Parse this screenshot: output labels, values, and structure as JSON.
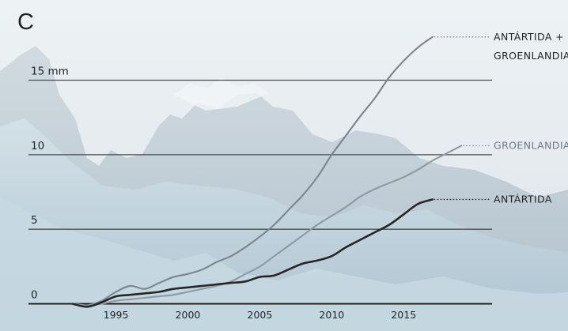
{
  "panel_letter": "C",
  "colors": {
    "sky": "#e6ecef",
    "mountain": "#b6c5cf",
    "ice": "#c4d8e2",
    "grid": "#4a4f52",
    "text": "#1f2326"
  },
  "chart_data": {
    "type": "line",
    "title": "",
    "xlabel": "",
    "ylabel": "",
    "xlim": [
      1992,
      2019
    ],
    "ylim": [
      -0.5,
      19
    ],
    "grid": true,
    "legend": "inline labels at line ends",
    "yticks": [
      {
        "value": 15,
        "label": "15 mm"
      },
      {
        "value": 10,
        "label": "10"
      },
      {
        "value": 5,
        "label": "5"
      },
      {
        "value": 0,
        "label": "0"
      }
    ],
    "xticks": [
      {
        "value": 1995,
        "label": "1995"
      },
      {
        "value": 2000,
        "label": "2000"
      },
      {
        "value": 2005,
        "label": "2005"
      },
      {
        "value": 2010,
        "label": "2010"
      },
      {
        "value": 2015,
        "label": "2015"
      }
    ],
    "series": [
      {
        "name": "ANTÁRTIDA + GROENLANDIA",
        "label_lines": [
          "ANTÁRTIDA +",
          "GROENLANDIA"
        ],
        "color": "#7b858c",
        "x": [
          1992.0,
          1993.0,
          1994.0,
          1995.0,
          1996.0,
          1997.0,
          1998.0,
          1999.0,
          2000.0,
          2001.0,
          2002.0,
          2003.0,
          2004.0,
          2005.0,
          2006.0,
          2007.0,
          2008.0,
          2009.0,
          2010.0,
          2011.0,
          2012.0,
          2013.0,
          2014.0,
          2015.0,
          2016.0,
          2017.0
        ],
        "y": [
          0.0,
          -0.1,
          0.2,
          0.8,
          1.2,
          1.0,
          1.4,
          1.8,
          2.0,
          2.3,
          2.8,
          3.2,
          3.8,
          4.5,
          5.3,
          6.3,
          7.3,
          8.5,
          10.0,
          11.3,
          12.6,
          13.8,
          15.2,
          16.3,
          17.2,
          17.9
        ]
      },
      {
        "name": "GROENLANDIA",
        "label_lines": [
          "GROENLANDIA"
        ],
        "color": "#8e9aa2",
        "x": [
          1992.0,
          1993.0,
          1994.0,
          1995.0,
          1996.0,
          1997.0,
          1998.0,
          1999.0,
          2000.0,
          2001.0,
          2002.0,
          2003.0,
          2004.0,
          2005.0,
          2006.0,
          2007.0,
          2008.0,
          2009.0,
          2010.0,
          2011.0,
          2012.0,
          2013.0,
          2014.0,
          2015.0,
          2016.0,
          2017.0,
          2018.0,
          2019.0
        ],
        "y": [
          0.0,
          -0.1,
          0.0,
          0.2,
          0.3,
          0.4,
          0.5,
          0.6,
          0.8,
          1.0,
          1.2,
          1.5,
          2.0,
          2.5,
          3.2,
          3.9,
          4.6,
          5.3,
          5.9,
          6.5,
          7.2,
          7.7,
          8.1,
          8.5,
          9.0,
          9.6,
          10.1,
          10.6
        ]
      },
      {
        "name": "ANTÁRTIDA",
        "label_lines": [
          "ANTÁRTIDA"
        ],
        "color": "#262626",
        "x": [
          1992.0,
          1993.0,
          1994.0,
          1995.0,
          1996.0,
          1997.0,
          1998.0,
          1999.0,
          2000.0,
          2001.0,
          2002.0,
          2003.0,
          2004.0,
          2005.0,
          2006.0,
          2007.0,
          2008.0,
          2009.0,
          2010.0,
          2011.0,
          2012.0,
          2013.0,
          2014.0,
          2015.0,
          2016.0,
          2017.0
        ],
        "y": [
          0.0,
          -0.2,
          0.1,
          0.5,
          0.6,
          0.7,
          0.8,
          1.0,
          1.1,
          1.2,
          1.3,
          1.4,
          1.5,
          1.8,
          1.9,
          2.3,
          2.7,
          2.9,
          3.2,
          3.8,
          4.3,
          4.8,
          5.3,
          6.0,
          6.7,
          7.0
        ]
      }
    ]
  }
}
